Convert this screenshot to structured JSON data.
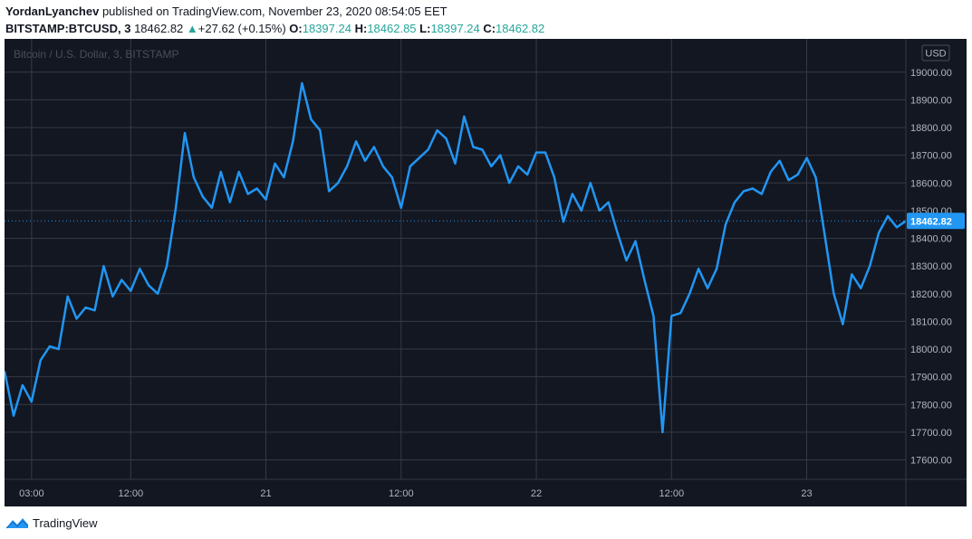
{
  "header": {
    "author": "YordanLyanchev",
    "published_text": "published on TradingView.com, November 23, 2020 08:54:05 EET",
    "symbol": "BITSTAMP:BTCUSD, 3",
    "last": "18462.82",
    "change": "+27.62 (+0.15%)",
    "o_label": "O:",
    "o_value": "18397.24",
    "h_label": "H:",
    "h_value": "18462.85",
    "l_label": "L:",
    "l_value": "18397.24",
    "c_label": "C:",
    "c_value": "18462.82"
  },
  "watermark": "Bitcoin / U.S. Dollar, 3, BITSTAMP",
  "currency_label": "USD",
  "price_label": "18462.82",
  "footer": {
    "brand": "TradingView"
  },
  "colors": {
    "background": "#131722",
    "line": "#2196f3",
    "grid": "#363a45",
    "axis_text": "#b2b5be",
    "up": "#26a69a",
    "price_tag": "#2196f3"
  },
  "chart_data": {
    "type": "line",
    "title": "Bitcoin / U.S. Dollar, 3, BITSTAMP",
    "ylabel": "USD",
    "ylim": [
      17530,
      19120
    ],
    "xlim": [
      0,
      100
    ],
    "grid": true,
    "y_ticks": [
      "17600.00",
      "17700.00",
      "17800.00",
      "17900.00",
      "18000.00",
      "18100.00",
      "18200.00",
      "18300.00",
      "18400.00",
      "18500.00",
      "18600.00",
      "18700.00",
      "18800.00",
      "18900.00",
      "19000.00"
    ],
    "x_ticks": [
      {
        "label": "03:00",
        "x": 3
      },
      {
        "label": "12:00",
        "x": 14
      },
      {
        "label": "21",
        "x": 29
      },
      {
        "label": "12:00",
        "x": 44
      },
      {
        "label": "22",
        "x": 59
      },
      {
        "label": "12:00",
        "x": 74
      },
      {
        "label": "23",
        "x": 89
      }
    ],
    "last_price": 18462.82,
    "series": [
      {
        "x": [
          0,
          1,
          2,
          3,
          4,
          5,
          6,
          7,
          8,
          9,
          10,
          11,
          12,
          13,
          14,
          15,
          16,
          17,
          18,
          19,
          20,
          21,
          22,
          23,
          24,
          25,
          26,
          27,
          28,
          29,
          30,
          31,
          32,
          33,
          34,
          35,
          36,
          37,
          38,
          39,
          40,
          41,
          42,
          43,
          44,
          45,
          46,
          47,
          48,
          49,
          50,
          51,
          52,
          53,
          54,
          55,
          56,
          57,
          58,
          59,
          60,
          61,
          62,
          63,
          64,
          65,
          66,
          67,
          68,
          69,
          70,
          71,
          72,
          73,
          74,
          75,
          76,
          77,
          78,
          79,
          80,
          81,
          82,
          83,
          84,
          85,
          86,
          87,
          88,
          89,
          90,
          91,
          92,
          93,
          94,
          95,
          96,
          97,
          98,
          99,
          100
        ],
        "values": [
          17920,
          17760,
          17870,
          17810,
          17960,
          18010,
          18000,
          18190,
          18110,
          18150,
          18140,
          18300,
          18190,
          18250,
          18210,
          18290,
          18230,
          18200,
          18300,
          18510,
          18780,
          18620,
          18550,
          18510,
          18640,
          18530,
          18640,
          18560,
          18580,
          18540,
          18670,
          18620,
          18750,
          18960,
          18830,
          18790,
          18570,
          18600,
          18660,
          18750,
          18680,
          18730,
          18660,
          18620,
          18510,
          18660,
          18690,
          18720,
          18790,
          18760,
          18670,
          18840,
          18730,
          18720,
          18660,
          18700,
          18600,
          18660,
          18630,
          18710,
          18710,
          18620,
          18460,
          18560,
          18500,
          18600,
          18500,
          18530,
          18420,
          18320,
          18390,
          18250,
          18120,
          17700,
          18120,
          18130,
          18200,
          18290,
          18220,
          18290,
          18450,
          18530,
          18570,
          18580,
          18560,
          18640,
          18680,
          18610,
          18630,
          18690,
          18620,
          18410,
          18200,
          18090,
          18270,
          18220,
          18300,
          18420,
          18480,
          18440,
          18462.82
        ]
      }
    ]
  }
}
